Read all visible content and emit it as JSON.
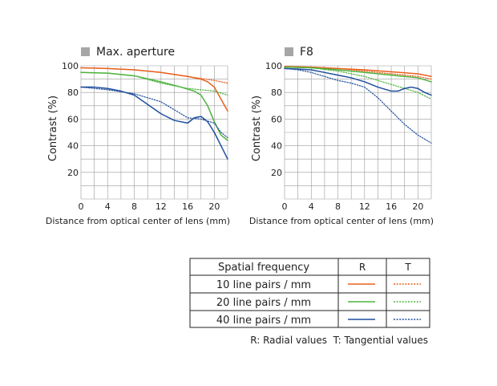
{
  "chart_data": [
    {
      "type": "line",
      "title": "Max. aperture",
      "xlabel": "Distance from optical center of lens (mm)",
      "ylabel": "Contrast (%)",
      "xlim": [
        0,
        22
      ],
      "ylim": [
        0,
        100
      ],
      "xticks": [
        0,
        4,
        8,
        12,
        16,
        20
      ],
      "yticks": [
        20,
        40,
        60,
        80,
        100
      ],
      "grid": true,
      "series": [
        {
          "name": "10 line pairs / mm R",
          "style": "solid",
          "color": "#e8601c",
          "x": [
            0,
            4,
            8,
            12,
            16,
            18,
            19,
            20,
            21,
            22
          ],
          "y": [
            98.5,
            98,
            97,
            95,
            92,
            90,
            88,
            84,
            75,
            66
          ]
        },
        {
          "name": "10 line pairs / mm T",
          "style": "dotted",
          "color": "#e8601c",
          "x": [
            0,
            4,
            8,
            12,
            16,
            18,
            20,
            22
          ],
          "y": [
            98.5,
            98,
            97,
            95,
            92,
            90.5,
            89,
            87
          ]
        },
        {
          "name": "20 line pairs / mm R",
          "style": "solid",
          "color": "#4db33d",
          "x": [
            0,
            4,
            8,
            12,
            15,
            17,
            18,
            19,
            20,
            21,
            22
          ],
          "y": [
            95,
            94.5,
            92.5,
            88,
            84,
            81,
            78,
            70,
            58,
            48,
            44
          ]
        },
        {
          "name": "20 line pairs / mm T",
          "style": "dotted",
          "color": "#4db33d",
          "x": [
            0,
            4,
            8,
            12,
            16,
            18,
            20,
            22
          ],
          "y": [
            95,
            94.5,
            92.5,
            87,
            83,
            82,
            81,
            78
          ]
        },
        {
          "name": "40 line pairs / mm R",
          "style": "solid",
          "color": "#1f4e9e",
          "x": [
            0,
            2,
            4,
            6,
            8,
            10,
            12,
            14,
            16,
            17,
            18,
            19,
            20,
            21,
            22
          ],
          "y": [
            84,
            84,
            83,
            81,
            78,
            71,
            64,
            59,
            57,
            61,
            62,
            58,
            50,
            40,
            30
          ]
        },
        {
          "name": "40 line pairs / mm T",
          "style": "dotted",
          "color": "#1f4e9e",
          "x": [
            0,
            4,
            8,
            12,
            14,
            16,
            18,
            20,
            21,
            22
          ],
          "y": [
            84,
            82,
            79,
            73,
            67,
            61,
            60,
            57,
            50,
            46
          ]
        }
      ]
    },
    {
      "type": "line",
      "title": "F8",
      "xlabel": "Distance from optical center of lens (mm)",
      "ylabel": "Contrast (%)",
      "xlim": [
        0,
        22
      ],
      "ylim": [
        0,
        100
      ],
      "xticks": [
        0,
        4,
        8,
        12,
        16,
        20
      ],
      "yticks": [
        20,
        40,
        60,
        80,
        100
      ],
      "grid": true,
      "series": [
        {
          "name": "10 line pairs / mm R",
          "style": "solid",
          "color": "#e8601c",
          "x": [
            0,
            4,
            8,
            12,
            16,
            20,
            22
          ],
          "y": [
            99.5,
            99,
            98,
            97,
            95.5,
            94,
            92
          ]
        },
        {
          "name": "10 line pairs / mm T",
          "style": "dotted",
          "color": "#e8601c",
          "x": [
            0,
            4,
            8,
            12,
            16,
            20,
            22
          ],
          "y": [
            99.5,
            99,
            98,
            96,
            94,
            92,
            90
          ]
        },
        {
          "name": "20 line pairs / mm R",
          "style": "solid",
          "color": "#4db33d",
          "x": [
            0,
            4,
            8,
            12,
            16,
            20,
            22
          ],
          "y": [
            99,
            98.5,
            97,
            95,
            93,
            91,
            88
          ]
        },
        {
          "name": "20 line pairs / mm T",
          "style": "dotted",
          "color": "#4db33d",
          "x": [
            0,
            4,
            8,
            12,
            16,
            20,
            22
          ],
          "y": [
            99,
            98.5,
            96,
            92,
            86,
            80,
            75
          ]
        },
        {
          "name": "40 line pairs / mm R",
          "style": "solid",
          "color": "#1f4e9e",
          "x": [
            0,
            2,
            4,
            6,
            8,
            10,
            12,
            14,
            16,
            17,
            18,
            19,
            20,
            21,
            22
          ],
          "y": [
            98,
            97.5,
            97,
            95,
            93,
            91,
            88,
            84,
            81,
            81,
            83,
            84,
            83,
            80,
            78
          ]
        },
        {
          "name": "40 line pairs / mm T",
          "style": "dotted",
          "color": "#1f4e9e",
          "x": [
            0,
            2,
            4,
            6,
            8,
            10,
            12,
            14,
            16,
            18,
            20,
            22
          ],
          "y": [
            98,
            97,
            95,
            92,
            89,
            87,
            84,
            76,
            66,
            56,
            48,
            42
          ]
        }
      ]
    }
  ],
  "legend_table": {
    "header": {
      "label": "Spatial frequency",
      "r": "R",
      "t": "T"
    },
    "rows": [
      {
        "label": "10 line pairs / mm",
        "color": "#e8601c"
      },
      {
        "label": "20 line pairs / mm",
        "color": "#4db33d"
      },
      {
        "label": "40 line pairs / mm",
        "color": "#1f4e9e"
      }
    ],
    "note": "R: Radial values  T: Tangential values"
  },
  "colors": {
    "grid": "#9a9a9a",
    "axis": "#555555",
    "title_square": "#a6a6a6"
  }
}
